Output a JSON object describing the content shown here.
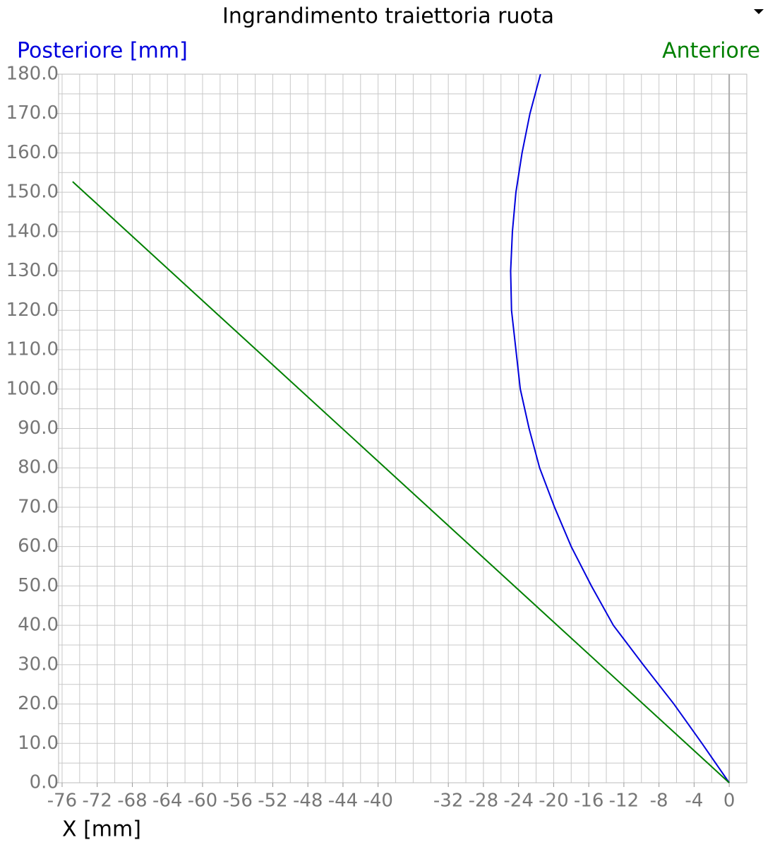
{
  "chart_data": {
    "type": "line",
    "title": "Ingrandimento traiettoria ruota",
    "x_label": "X [mm]",
    "xlim": [
      -76.4,
      2
    ],
    "ylim": [
      0,
      180
    ],
    "xticks": [
      -76,
      -72,
      -68,
      -64,
      -60,
      -56,
      -52,
      -48,
      -44,
      -40,
      -32,
      -28,
      -24,
      -20,
      -16,
      -12,
      -8,
      -4,
      0
    ],
    "yticks": [
      {
        "value": 0,
        "label": "0.0"
      },
      {
        "value": 10,
        "label": "10.0"
      },
      {
        "value": 20,
        "label": "20.0"
      },
      {
        "value": 30,
        "label": "30.0"
      },
      {
        "value": 40,
        "label": "40.0"
      },
      {
        "value": 50,
        "label": "50.0"
      },
      {
        "value": 60,
        "label": "60.0"
      },
      {
        "value": 70,
        "label": "70.0"
      },
      {
        "value": 80,
        "label": "80.0"
      },
      {
        "value": 90,
        "label": "90.0"
      },
      {
        "value": 100,
        "label": "100.0"
      },
      {
        "value": 110,
        "label": "110.0"
      },
      {
        "value": 120,
        "label": "120.0"
      },
      {
        "value": 130,
        "label": "130.0"
      },
      {
        "value": 140,
        "label": "140.0"
      },
      {
        "value": 150,
        "label": "150.0"
      },
      {
        "value": 160,
        "label": "160.0"
      },
      {
        "value": 170,
        "label": "170.0"
      },
      {
        "value": 180,
        "label": "180.0"
      }
    ],
    "grid": true,
    "minor_grid": {
      "x": 2,
      "y": 5
    },
    "series": [
      {
        "name": "Posteriore [mm]",
        "color": "#0000dd",
        "x": [
          0,
          -3.1,
          -6.3,
          -9.8,
          -13.2,
          -15.7,
          -18.0,
          -19.9,
          -21.6,
          -22.8,
          -23.8,
          -24.3,
          -24.8,
          -24.9,
          -24.7,
          -24.3,
          -23.6,
          -22.7,
          -21.5
        ],
        "values": [
          0,
          10,
          20,
          30,
          40,
          50,
          60,
          70,
          80,
          90,
          100,
          110,
          120,
          130,
          140,
          150,
          160,
          170,
          180
        ]
      },
      {
        "name": "Anteriore",
        "color": "#008000",
        "x": [
          0,
          -74.8
        ],
        "values": [
          0,
          152.7
        ]
      }
    ]
  }
}
